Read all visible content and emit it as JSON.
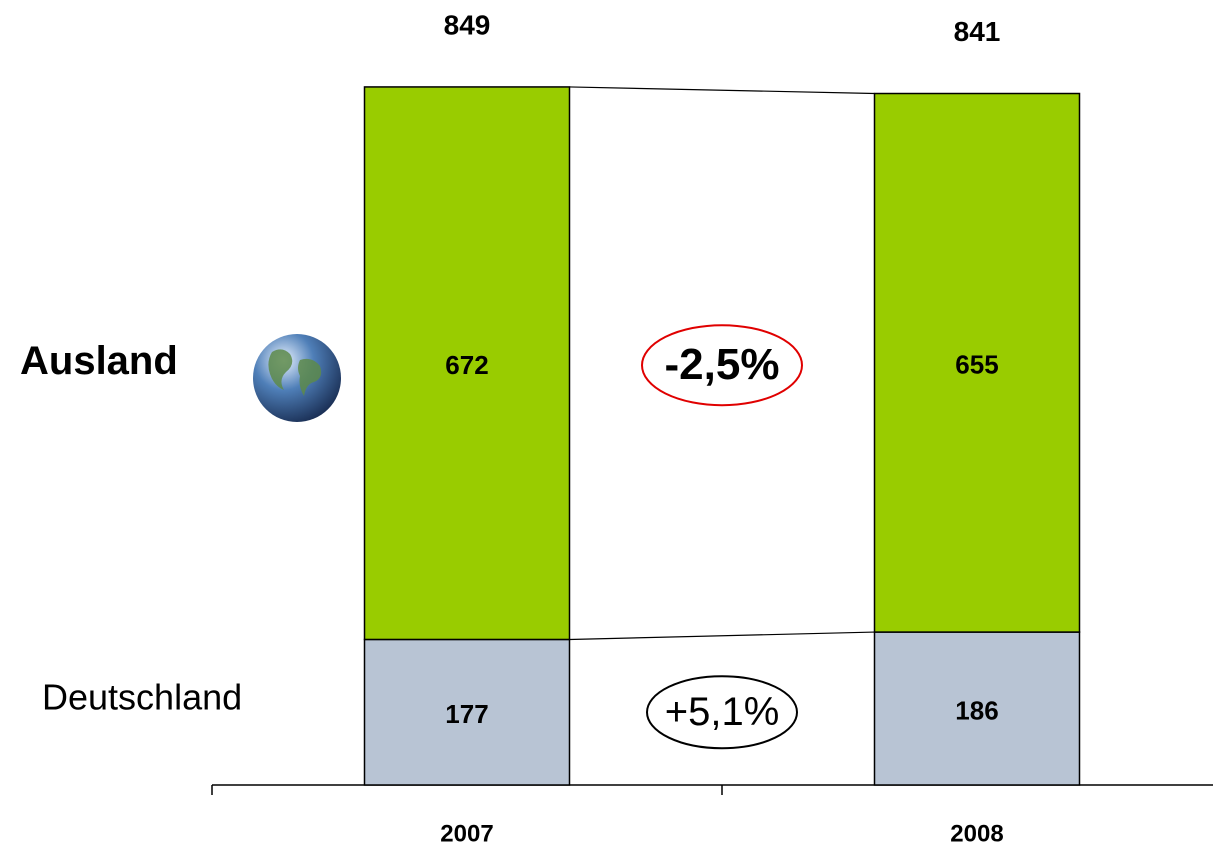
{
  "chart_data": {
    "type": "stacked-bar",
    "categories": [
      "2007",
      "2008"
    ],
    "series": [
      {
        "name": "Deutschland",
        "color": "#b8c4d4",
        "values": [
          177,
          186
        ]
      },
      {
        "name": "Ausland",
        "color": "#99cc00",
        "values": [
          672,
          655
        ]
      }
    ],
    "totals": [
      849,
      841
    ],
    "annotations": [
      {
        "text": "+5,1%",
        "color": "#000000"
      },
      {
        "text": "-2,5%",
        "color": "#e00000"
      }
    ],
    "ylim": [
      0,
      900
    ]
  }
}
